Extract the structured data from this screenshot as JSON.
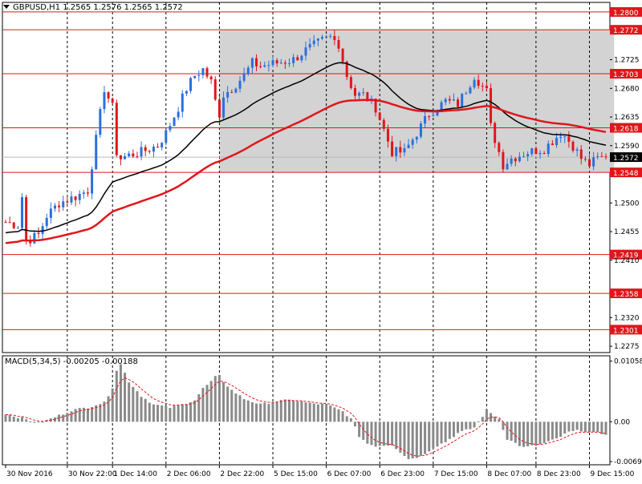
{
  "header": {
    "symbol_title": "GBPUSD,H1",
    "ohlc": "1.2565 1.2576 1.2565 1.2572",
    "macd_title": "MACD(5,34,5)",
    "macd_values": "-0.00205 -0.00188"
  },
  "colors": {
    "bull": "#2b6fdd",
    "bear": "#e0161b",
    "ma_fast": "#000000",
    "ma_slow": "#e0161b",
    "level_line": "#e0161b",
    "zone_fill": "#d3d3d3",
    "macd_bar": "#8a8a8a",
    "signal": "#e0161b",
    "current_price_bg": "#000000"
  },
  "chart_data": [
    {
      "type": "candlestick",
      "title": "GBPUSD,H1",
      "ylim": [
        1.2265,
        1.2815
      ],
      "y_ticks": [
        "1.2800",
        "1.2772",
        "1.2725",
        "1.2703",
        "1.2680",
        "1.2635",
        "1.2618",
        "1.2590",
        "1.2572",
        "1.2548",
        "1.2500",
        "1.2455",
        "1.2419",
        "1.2410",
        "1.2358",
        "1.2320",
        "1.2301",
        "1.2275"
      ],
      "price_levels": [
        {
          "value": 1.28,
          "label": "1.2800"
        },
        {
          "value": 1.2772,
          "label": "1.2772"
        },
        {
          "value": 1.2703,
          "label": "1.2703"
        },
        {
          "value": 1.2618,
          "label": "1.2618"
        },
        {
          "value": 1.2548,
          "label": "1.2548"
        },
        {
          "value": 1.2419,
          "label": "1.2419"
        },
        {
          "value": 1.2358,
          "label": "1.2358"
        },
        {
          "value": 1.2301,
          "label": "1.2301"
        }
      ],
      "current_price": {
        "value": 1.2572,
        "label": "1.2572"
      },
      "zone": {
        "from_bar": 52,
        "to_bar": 148,
        "low": 1.2548,
        "high": 1.2772
      },
      "x_labels": [
        {
          "bar": 0,
          "label": "30 Nov 2016"
        },
        {
          "bar": 15,
          "label": "30 Nov 22:00"
        },
        {
          "bar": 26,
          "label": "1 Dec 14:00"
        },
        {
          "bar": 39,
          "label": "2 Dec 06:00"
        },
        {
          "bar": 52,
          "label": "2 Dec 22:00"
        },
        {
          "bar": 65,
          "label": "5 Dec 15:00"
        },
        {
          "bar": 78,
          "label": "6 Dec 07:00"
        },
        {
          "bar": 91,
          "label": "6 Dec 23:00"
        },
        {
          "bar": 104,
          "label": "7 Dec 15:00"
        },
        {
          "bar": 117,
          "label": "8 Dec 07:00"
        },
        {
          "bar": 129,
          "label": "8 Dec 23:00"
        },
        {
          "bar": 142,
          "label": "9 Dec 15:00"
        }
      ],
      "anchors_bar": [
        0,
        3,
        4,
        5,
        8,
        10,
        13,
        17,
        20,
        22,
        24,
        26,
        27,
        28,
        30,
        33,
        37,
        39,
        42,
        44,
        46,
        48,
        50,
        51,
        52,
        53,
        55,
        58,
        60,
        62,
        66,
        70,
        73,
        77,
        79,
        81,
        83,
        85,
        87,
        90,
        94,
        97,
        99,
        101,
        103,
        107,
        110,
        114,
        117,
        118,
        121,
        123,
        125,
        127,
        131,
        135,
        136,
        138,
        140,
        142,
        144,
        146
      ],
      "anchors_price": [
        1.247,
        1.2465,
        1.251,
        1.244,
        1.245,
        1.248,
        1.25,
        1.251,
        1.252,
        1.26,
        1.268,
        1.265,
        1.258,
        1.257,
        1.2575,
        1.258,
        1.259,
        1.261,
        1.265,
        1.268,
        1.27,
        1.271,
        1.269,
        1.266,
        1.264,
        1.267,
        1.268,
        1.27,
        1.272,
        1.2715,
        1.272,
        1.2725,
        1.274,
        1.2755,
        1.276,
        1.275,
        1.27,
        1.267,
        1.267,
        1.265,
        1.258,
        1.258,
        1.26,
        1.262,
        1.264,
        1.266,
        1.2655,
        1.27,
        1.2675,
        1.262,
        1.256,
        1.257,
        1.2575,
        1.258,
        1.2585,
        1.261,
        1.2605,
        1.259,
        1.257,
        1.256,
        1.257,
        1.2572
      ],
      "bar_count": 147
    },
    {
      "type": "bar",
      "title": "MACD(5,34,5)",
      "ylim": [
        -0.0075,
        0.0115
      ],
      "y_ticks": [
        "0.01058",
        "0.00",
        "-0.00694"
      ],
      "anchors_bar": [
        0,
        4,
        8,
        12,
        16,
        20,
        22,
        24,
        26,
        27,
        28,
        30,
        33,
        36,
        40,
        43,
        46,
        48,
        50,
        51,
        52,
        53,
        55,
        58,
        62,
        66,
        70,
        74,
        78,
        80,
        82,
        84,
        86,
        88,
        90,
        94,
        98,
        101,
        104,
        107,
        110,
        114,
        117,
        118,
        120,
        122,
        126,
        130,
        134,
        137,
        140,
        143,
        146
      ],
      "anchors_value": [
        0.0014,
        0.0006,
        -0.0003,
        0.0008,
        0.002,
        0.0025,
        0.003,
        0.0033,
        0.006,
        0.009,
        0.01,
        0.007,
        0.0045,
        0.003,
        0.0025,
        0.003,
        0.0038,
        0.0058,
        0.007,
        0.0078,
        0.008,
        0.007,
        0.0055,
        0.004,
        0.003,
        0.0036,
        0.0038,
        0.0032,
        0.003,
        0.0024,
        0.0018,
        0.0005,
        -0.0025,
        -0.0038,
        -0.0042,
        -0.004,
        -0.0065,
        -0.006,
        -0.0045,
        -0.0035,
        -0.002,
        -0.001,
        0.002,
        0.0015,
        0.0005,
        -0.003,
        -0.0045,
        -0.004,
        -0.003,
        -0.0018,
        -0.0015,
        -0.002,
        -0.0021
      ],
      "zero_label": "0.00",
      "last_values": {
        "macd": -0.00205,
        "signal": -0.00188
      }
    }
  ]
}
